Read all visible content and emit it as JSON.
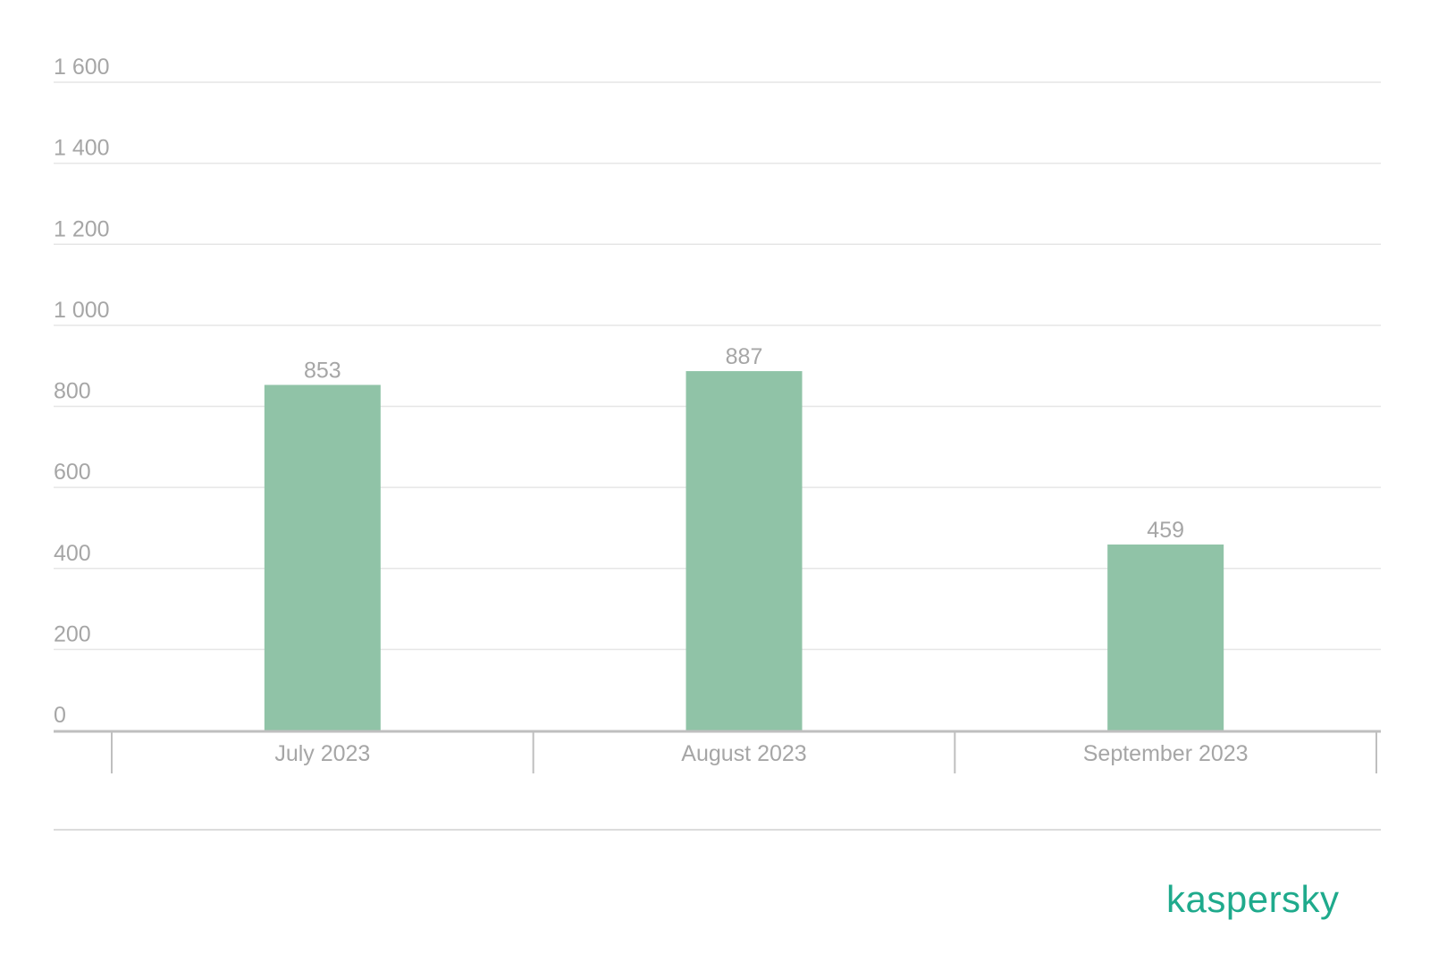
{
  "chart_data": {
    "type": "bar",
    "categories": [
      "July 2023",
      "August 2023",
      "September 2023"
    ],
    "values": [
      853,
      887,
      459
    ],
    "data_labels": [
      "853",
      "887",
      "459"
    ],
    "title": "",
    "xlabel": "",
    "ylabel": "",
    "ylim": [
      0,
      1600
    ],
    "yticks": [
      0,
      200,
      400,
      600,
      800,
      1000,
      1200,
      1400,
      1600
    ],
    "ytick_labels": [
      "0",
      "200",
      "400",
      "600",
      "800",
      "1 000",
      "1 200",
      "1 400",
      "1 600"
    ],
    "grid": true,
    "legend": "none"
  },
  "colors": {
    "bar": "#90c3a7",
    "grid": "#e6e6e6",
    "axis": "#bfbfbf",
    "text": "#a6a6a6",
    "brand": "#1faa8c"
  },
  "brand": {
    "logo_text": "kaspersky"
  }
}
